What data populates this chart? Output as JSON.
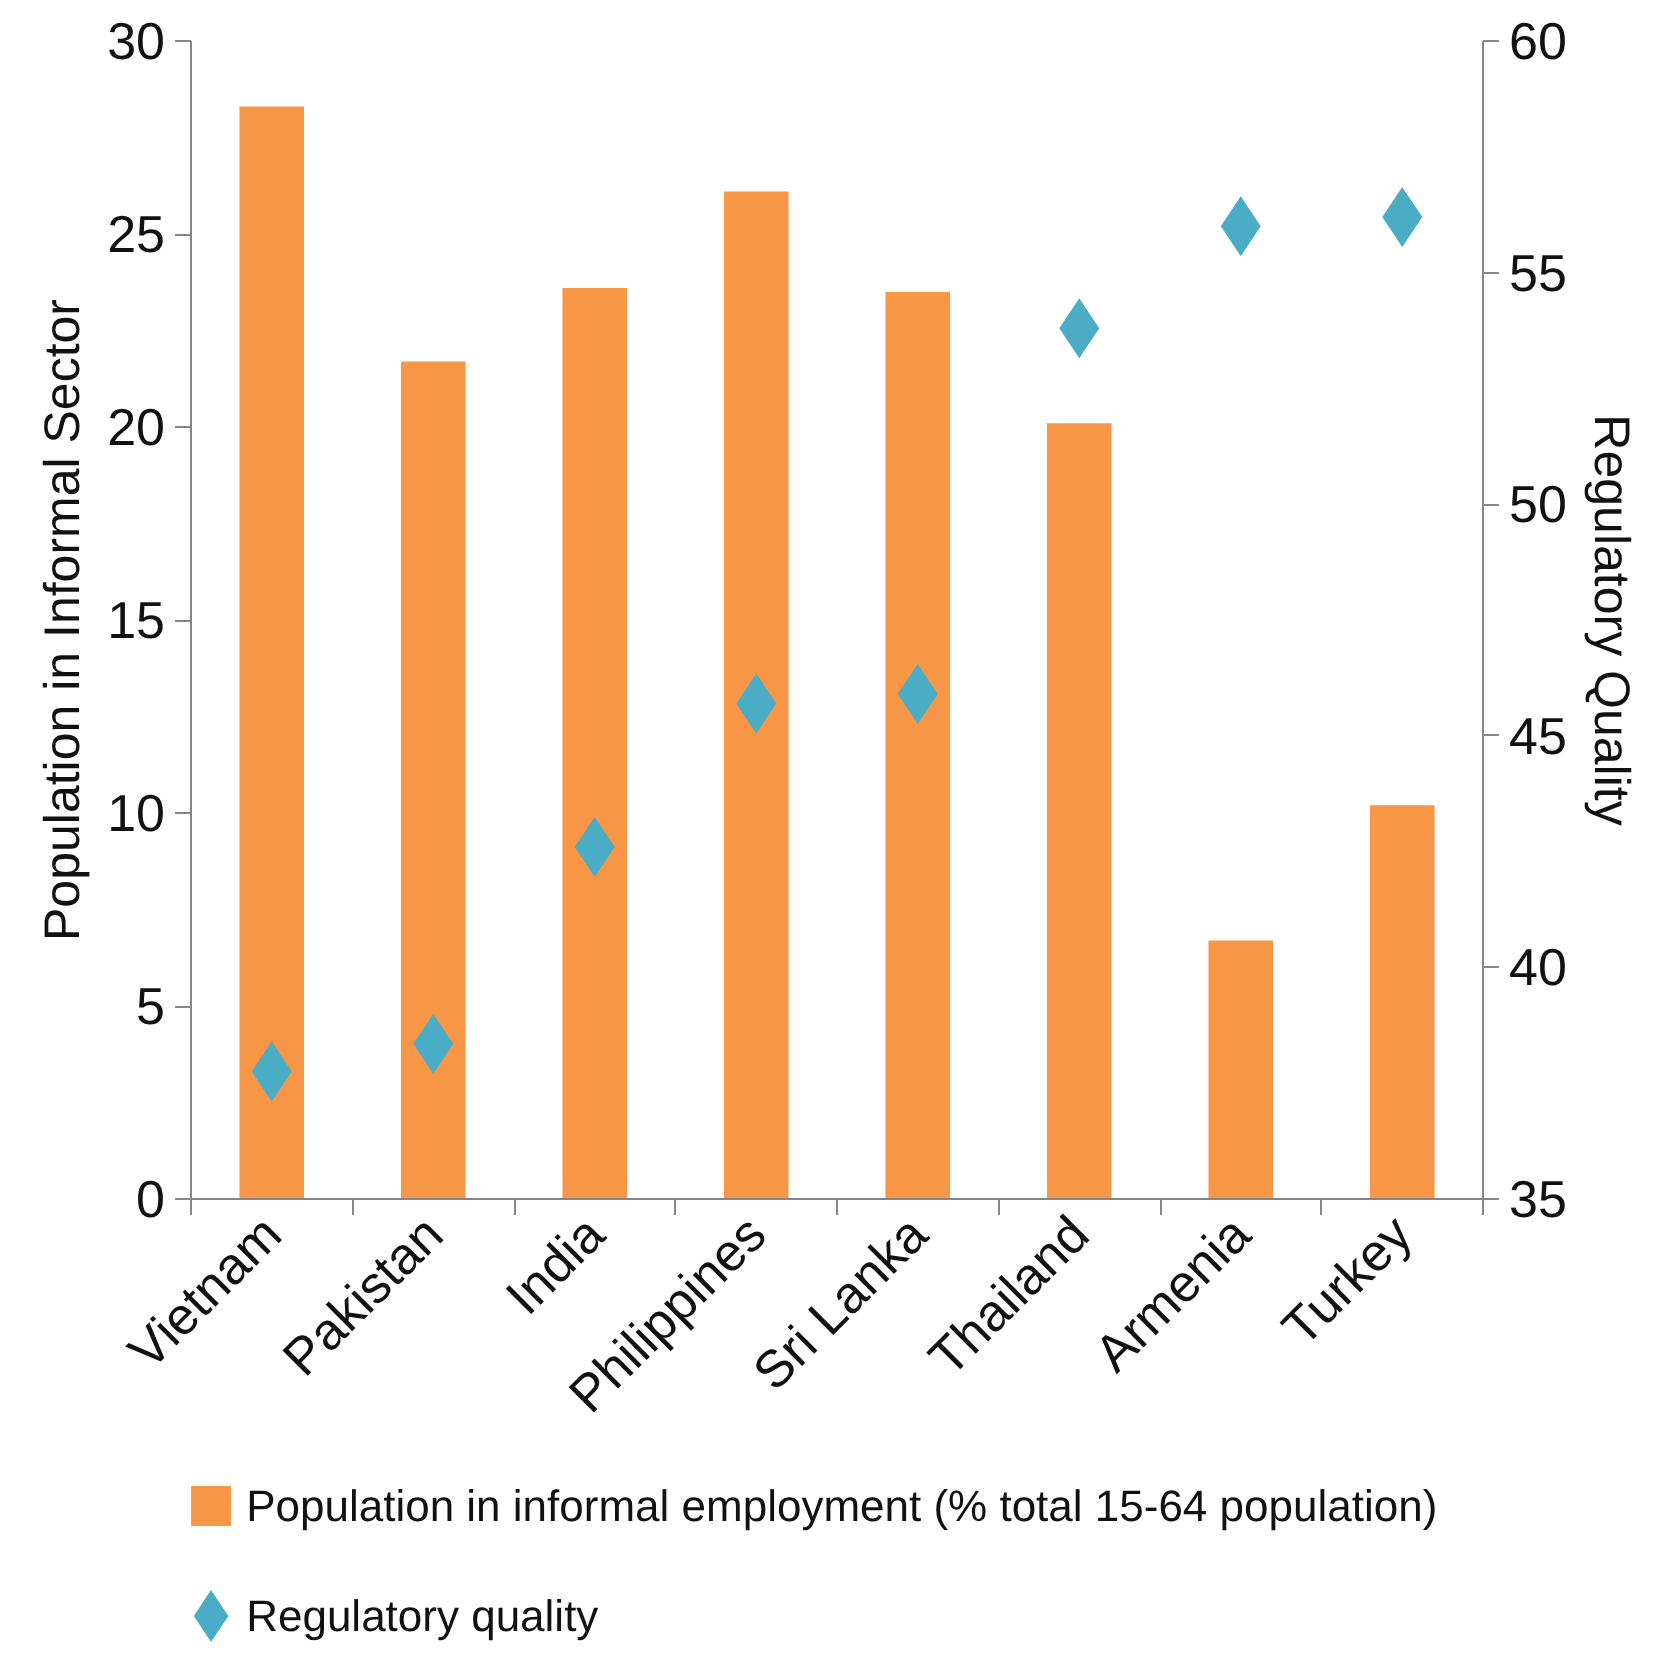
{
  "chart_data": {
    "type": "bar",
    "categories": [
      "Vietnam",
      "Pakistan",
      "India",
      "Philippines",
      "Sri Lanka",
      "Thailand",
      "Armenia",
      "Turkey"
    ],
    "ylabel": "Population in Informal Sector",
    "y2label": "Regulatory Quality",
    "ylim": [
      0,
      30
    ],
    "yticks": [
      0,
      5,
      10,
      15,
      20,
      25,
      30
    ],
    "y2lim": [
      35,
      60
    ],
    "y2ticks": [
      35,
      40,
      45,
      50,
      55,
      60
    ],
    "legend": "bottom",
    "grid": false,
    "series": [
      {
        "name": "Population in informal employment (% total 15-64 population)",
        "color": "#f79646",
        "values": [
          28.3,
          21.7,
          23.6,
          26.1,
          23.5,
          20.1,
          6.7,
          10.2
        ]
      },
      {
        "name": "Regulatory quality",
        "type": "scatter",
        "marker": "diamond",
        "axis": "y2",
        "color": "#4bacc6",
        "values": [
          37.75,
          38.35,
          42.6,
          45.7,
          45.9,
          53.8,
          56.0,
          56.2
        ]
      }
    ]
  }
}
